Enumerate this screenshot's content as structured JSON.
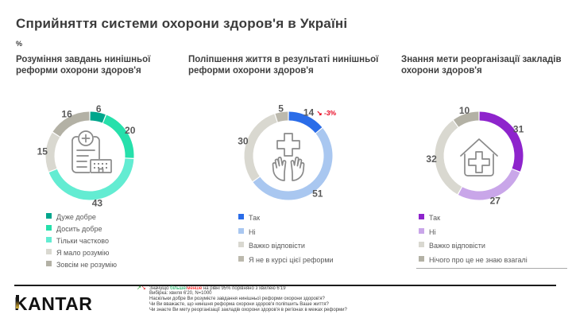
{
  "page": {
    "title": "Сприйняття системи охорони здоров'я в Україні",
    "unit_label": "%"
  },
  "chart_data": [
    {
      "type": "pie",
      "style": "donut",
      "title": "Розуміння завдань нинішньої реформи охорони здоров'я",
      "icon": "hospital-document-icon",
      "legend_position": "bottom",
      "segments": [
        {
          "label": "Дуже добре",
          "value": 6,
          "color": "#00a68c"
        },
        {
          "label": "Досить добре",
          "value": 20,
          "color": "#26e0ab"
        },
        {
          "label": "Тільки частково",
          "value": 43,
          "color": "#63ecd2"
        },
        {
          "label": "Я мало розумію",
          "value": 15,
          "color": "#d9d8d0"
        },
        {
          "label": "Зовсім не розумію",
          "value": 16,
          "color": "#b3b1a5"
        }
      ]
    },
    {
      "type": "pie",
      "style": "donut",
      "title": "Поліпшення життя в результаті нинішньої реформи охорони здоров'я",
      "icon": "hands-cross-icon",
      "legend_position": "bottom",
      "segments": [
        {
          "label": "Так",
          "value": 14,
          "color": "#2a6ce8",
          "change": "-3%",
          "change_direction": "down",
          "change_color": "#e8001c"
        },
        {
          "label": "Ні",
          "value": 51,
          "color": "#a9c7f0"
        },
        {
          "label": "Важко відповісти",
          "value": 30,
          "color": "#d9d8d0"
        },
        {
          "label": "Я не в курсі цієї реформи",
          "value": 5,
          "color": "#bcb9ad"
        }
      ]
    },
    {
      "type": "pie",
      "style": "donut",
      "title": "Знання мети реорганізації закладів охорони здоров'я",
      "icon": "medical-house-icon",
      "legend_position": "bottom",
      "segments": [
        {
          "label": "Так",
          "value": 31,
          "color": "#8e24cc"
        },
        {
          "label": "Ні",
          "value": 27,
          "color": "#c9a6e9"
        },
        {
          "label": "Важко відповісти",
          "value": 32,
          "color": "#d9d8d0"
        },
        {
          "label": "Нічого про це не знаю взагалі",
          "value": 10,
          "color": "#b3b1a5"
        }
      ]
    }
  ],
  "footer": {
    "logo": "KANTAR",
    "significance": {
      "prefix": "Значущо ",
      "more": "більше",
      "separator": "/",
      "less": "менше",
      "suffix": " на рівні 95% порівняно з хвилею 6'19",
      "up_arrow": "↗",
      "down_arrow": "↘"
    },
    "notes": [
      "Вибірка: хвиля 6'20, N=1000",
      "Наскільки добре Ви розумієте завдання нинішньої реформи охорони здоров'я?",
      "Чи Ви вважаєте, що нинішня реформа охорони здоров'я поліпшить Ваше життя?",
      "Чи знаєте Ви мету реорганізації закладів охорони здоров'я в регіонах в межах реформи?"
    ]
  }
}
